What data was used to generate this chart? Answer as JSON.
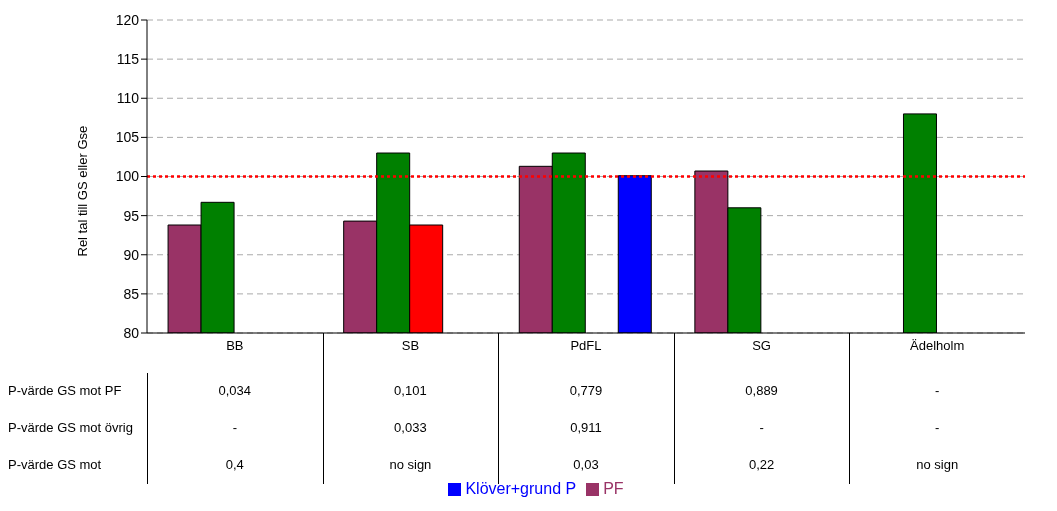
{
  "chart_data": {
    "type": "bar",
    "ylabel": "Rel tal till GS eller Gse",
    "categories": [
      "BB",
      "SB",
      "PdFL",
      "SG",
      "Ädelholm"
    ],
    "series": [
      {
        "name": "PF",
        "color": "#993366",
        "values": [
          93.8,
          94.3,
          101.3,
          100.7,
          null
        ]
      },
      {
        "color": "#008000",
        "values": [
          96.7,
          103,
          103,
          96,
          108
        ]
      },
      {
        "color": "#ff0000",
        "values": [
          null,
          93.8,
          null,
          null,
          null
        ]
      },
      {
        "name": "Klöver+grund P",
        "color": "#0000ff",
        "values": [
          null,
          null,
          100.1,
          null,
          null
        ]
      }
    ],
    "ylim": [
      80,
      120
    ],
    "yticks": [
      80,
      85,
      90,
      95,
      100,
      105,
      110,
      115,
      120
    ],
    "grid": "y",
    "legend": "bottom",
    "ref_lines": [
      {
        "axis": "y",
        "value": 100,
        "color": "#ff0000",
        "line_style": "dotted"
      }
    ],
    "annotations": [
      "P-värde GS mot PF",
      "0,034",
      "0,101",
      "0,779",
      "0,889",
      "-",
      "P-värde GS mot övrig",
      "-",
      "0,033",
      "0,911",
      "-",
      "-",
      "P-värde GS mot",
      "0,4",
      "no sign",
      "0,03",
      "0,22",
      "no sign"
    ]
  }
}
